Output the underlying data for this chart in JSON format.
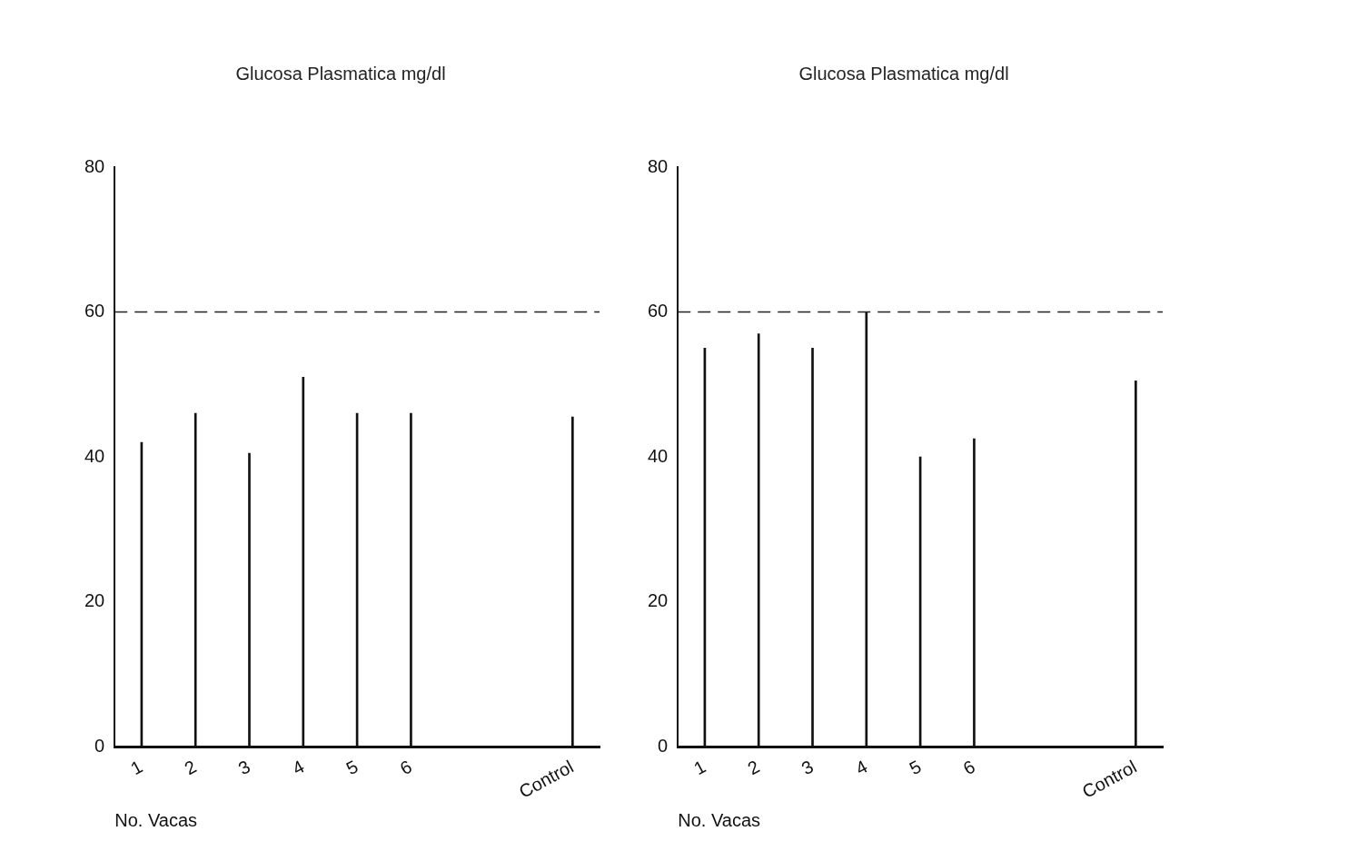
{
  "chart_data": [
    {
      "type": "bar",
      "title": "Glucosa Plasmatica mg/dl",
      "xlabel": "No. Vacas",
      "categories": [
        "1",
        "2",
        "3",
        "4",
        "5",
        "6",
        null,
        null,
        "Control"
      ],
      "values": [
        42,
        46,
        40.5,
        51,
        46,
        46,
        null,
        null,
        45.5
      ],
      "color": "#111111",
      "ylim": [
        0,
        80
      ],
      "yticks": [
        0,
        20,
        40,
        60,
        80
      ],
      "grid": false,
      "legend": false,
      "ref_lines": [
        {
          "axis": "y",
          "value": 60,
          "line_style": "dashed",
          "color": "#222222"
        }
      ]
    },
    {
      "type": "bar",
      "title": "Glucosa Plasmatica mg/dl",
      "xlabel": "No. Vacas",
      "categories": [
        "1",
        "2",
        "3",
        "4",
        "5",
        "6",
        null,
        null,
        "Control"
      ],
      "values": [
        55,
        57,
        55,
        60,
        40,
        42.5,
        null,
        null,
        50.5
      ],
      "color": "#111111",
      "ylim": [
        0,
        80
      ],
      "yticks": [
        0,
        20,
        40,
        60,
        80
      ],
      "grid": false,
      "legend": false,
      "ref_lines": [
        {
          "axis": "y",
          "value": 60,
          "line_style": "dashed",
          "color": "#222222"
        }
      ]
    }
  ]
}
